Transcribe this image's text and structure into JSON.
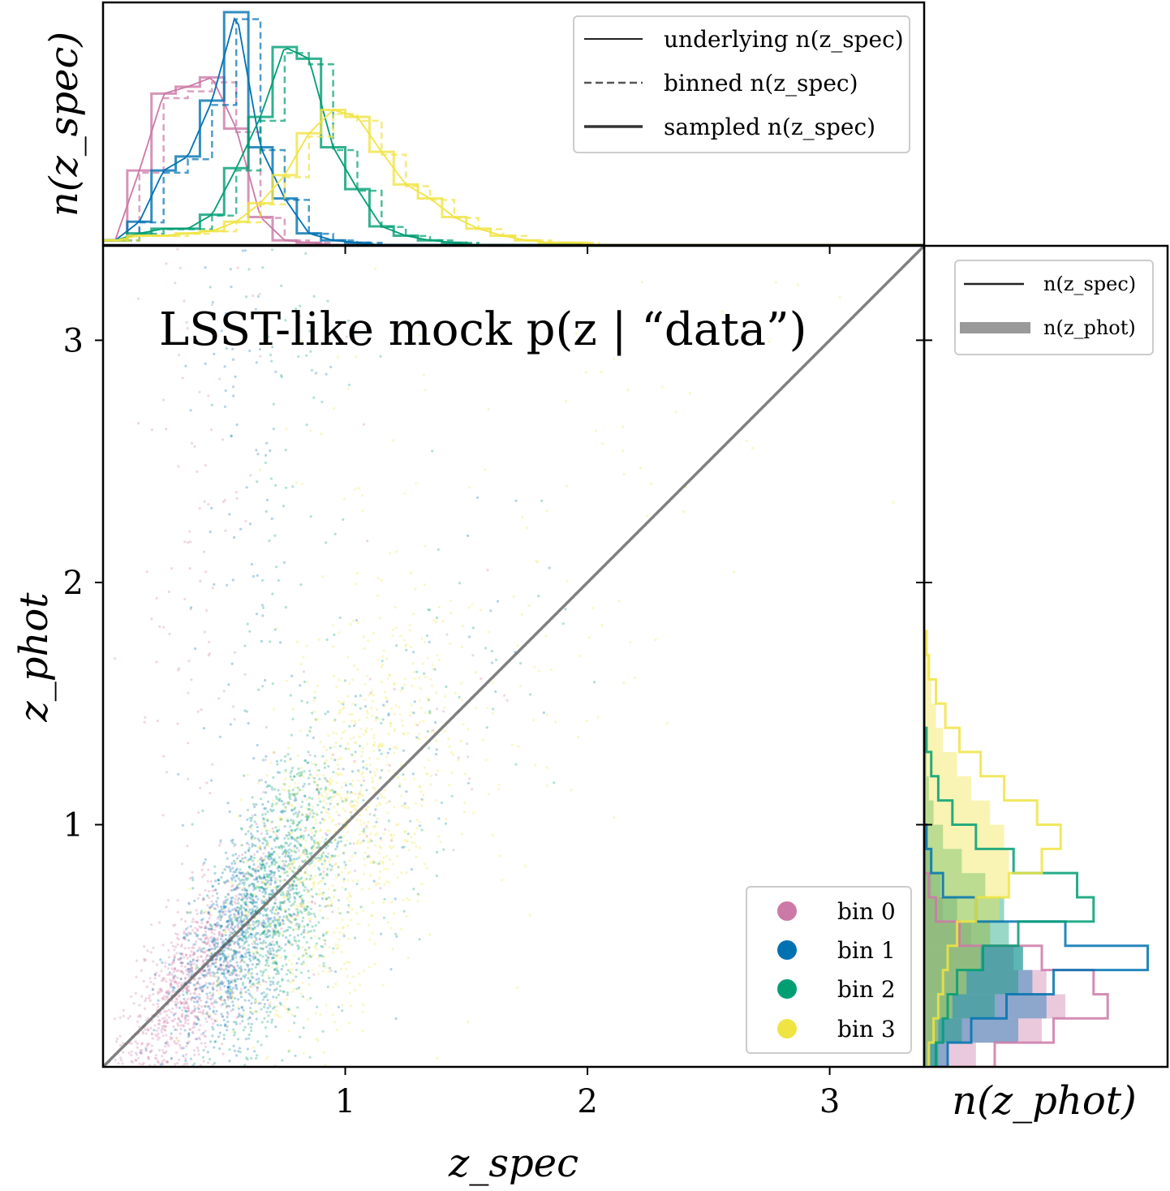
{
  "chart_data": {
    "type": "scatter",
    "title": "LSST-like mock p(z | “data”)",
    "xlabel": "z_spec",
    "ylabel": "z_phot",
    "xlim": [
      0,
      3.39
    ],
    "ylim": [
      0,
      3.39
    ],
    "xticks": [
      "1",
      "2",
      "3"
    ],
    "yticks": [
      "1",
      "2",
      "3"
    ],
    "reference_line": "y = x",
    "series": [
      {
        "name": "bin 0",
        "color": "#CC79A7",
        "spec_center": 0.35,
        "spec_width": 0.13,
        "phot_scatter": 0.12,
        "outlier_fraction": 0.12
      },
      {
        "name": "bin 1",
        "color": "#0072B2",
        "spec_center": 0.55,
        "spec_width": 0.12,
        "phot_scatter": 0.13,
        "outlier_fraction": 0.1
      },
      {
        "name": "bin 2",
        "color": "#009E73",
        "spec_center": 0.73,
        "spec_width": 0.13,
        "phot_scatter": 0.15,
        "outlier_fraction": 0.08
      },
      {
        "name": "bin 3",
        "color": "#F0E442",
        "spec_center": 0.97,
        "spec_width": 0.22,
        "phot_scatter": 0.18,
        "outlier_fraction": 0.06
      }
    ],
    "top_panel": {
      "ylabel": "n(z_spec)",
      "legend": [
        {
          "label": "underlying n(z_spec)",
          "style": "thin-solid"
        },
        {
          "label": "binned n(z_spec)",
          "style": "dashed"
        },
        {
          "label": "sampled n(z_spec)",
          "style": "thick-solid"
        }
      ],
      "bin_edges": [
        0.0,
        0.1,
        0.2,
        0.3,
        0.4,
        0.5,
        0.6,
        0.7,
        0.8,
        0.9,
        1.0,
        1.1,
        1.2,
        1.3,
        1.4,
        1.5,
        1.6,
        1.7,
        1.8,
        1.9,
        2.0
      ],
      "histograms": [
        {
          "name": "bin 0",
          "values": [
            0.02,
            0.32,
            0.65,
            0.68,
            0.72,
            0.5,
            0.12,
            0.02,
            0.01,
            0.0,
            0.0,
            0.0,
            0.0,
            0.0,
            0.0,
            0.0,
            0.0,
            0.0,
            0.0,
            0.0
          ]
        },
        {
          "name": "bin 1",
          "values": [
            0.02,
            0.1,
            0.32,
            0.38,
            0.62,
            1.0,
            0.42,
            0.2,
            0.05,
            0.02,
            0.01,
            0.0,
            0.0,
            0.0,
            0.0,
            0.0,
            0.0,
            0.0,
            0.0,
            0.0
          ]
        },
        {
          "name": "bin 2",
          "values": [
            0.02,
            0.05,
            0.07,
            0.07,
            0.13,
            0.33,
            0.55,
            0.85,
            0.8,
            0.42,
            0.24,
            0.08,
            0.04,
            0.02,
            0.01,
            0.0,
            0.0,
            0.0,
            0.0,
            0.0
          ]
        },
        {
          "name": "bin 3",
          "values": [
            0.02,
            0.04,
            0.04,
            0.05,
            0.06,
            0.1,
            0.18,
            0.3,
            0.48,
            0.58,
            0.55,
            0.4,
            0.26,
            0.2,
            0.12,
            0.07,
            0.04,
            0.02,
            0.01,
            0.01
          ]
        }
      ]
    },
    "right_panel": {
      "xlabel": "n(z_phot)",
      "legend": [
        {
          "label": "n(z_spec)",
          "style": "thin-solid"
        },
        {
          "label": "n(z_phot)",
          "style": "thick-gray"
        }
      ],
      "bin_edges": [
        0.0,
        0.1,
        0.2,
        0.3,
        0.4,
        0.5,
        0.6,
        0.7,
        0.8,
        0.9,
        1.0,
        1.1,
        1.2,
        1.3,
        1.4,
        1.5,
        1.6,
        1.7,
        1.8
      ],
      "spec_histograms": [
        {
          "name": "bin 0",
          "values": [
            0.3,
            0.55,
            0.78,
            0.72,
            0.5,
            0.15,
            0.05,
            0.02,
            0.0,
            0.0,
            0.0,
            0.0,
            0.0,
            0.0,
            0.0,
            0.0,
            0.0,
            0.0
          ]
        },
        {
          "name": "bin 1",
          "values": [
            0.1,
            0.2,
            0.35,
            0.55,
            0.95,
            0.6,
            0.22,
            0.08,
            0.03,
            0.01,
            0.0,
            0.0,
            0.0,
            0.0,
            0.0,
            0.0,
            0.0,
            0.0
          ]
        },
        {
          "name": "bin 2",
          "values": [
            0.05,
            0.08,
            0.1,
            0.14,
            0.25,
            0.4,
            0.72,
            0.65,
            0.38,
            0.22,
            0.12,
            0.06,
            0.03,
            0.01,
            0.0,
            0.0,
            0.0,
            0.0
          ]
        },
        {
          "name": "bin 3",
          "values": [
            0.02,
            0.04,
            0.06,
            0.08,
            0.1,
            0.14,
            0.22,
            0.36,
            0.5,
            0.58,
            0.48,
            0.34,
            0.24,
            0.15,
            0.09,
            0.05,
            0.02,
            0.01
          ]
        }
      ],
      "phot_histograms": [
        {
          "name": "bin 0",
          "values": [
            0.22,
            0.5,
            0.6,
            0.52,
            0.38,
            0.2,
            0.08,
            0.03,
            0.01,
            0.0,
            0.0,
            0.0,
            0.0,
            0.0,
            0.0,
            0.0,
            0.0,
            0.0
          ]
        },
        {
          "name": "bin 1",
          "values": [
            0.1,
            0.4,
            0.52,
            0.46,
            0.42,
            0.28,
            0.14,
            0.07,
            0.03,
            0.01,
            0.0,
            0.0,
            0.0,
            0.0,
            0.0,
            0.0,
            0.0,
            0.0
          ]
        },
        {
          "name": "bin 2",
          "values": [
            0.06,
            0.16,
            0.3,
            0.4,
            0.42,
            0.36,
            0.34,
            0.26,
            0.16,
            0.08,
            0.04,
            0.02,
            0.01,
            0.0,
            0.0,
            0.0,
            0.0,
            0.0
          ]
        },
        {
          "name": "bin 3",
          "values": [
            0.02,
            0.06,
            0.12,
            0.18,
            0.24,
            0.28,
            0.32,
            0.36,
            0.36,
            0.34,
            0.28,
            0.2,
            0.14,
            0.08,
            0.05,
            0.03,
            0.02,
            0.01
          ]
        }
      ]
    },
    "legend": [
      "bin 0",
      "bin 1",
      "bin 2",
      "bin 3"
    ],
    "legend_placement": "lower-right",
    "grid": false
  }
}
